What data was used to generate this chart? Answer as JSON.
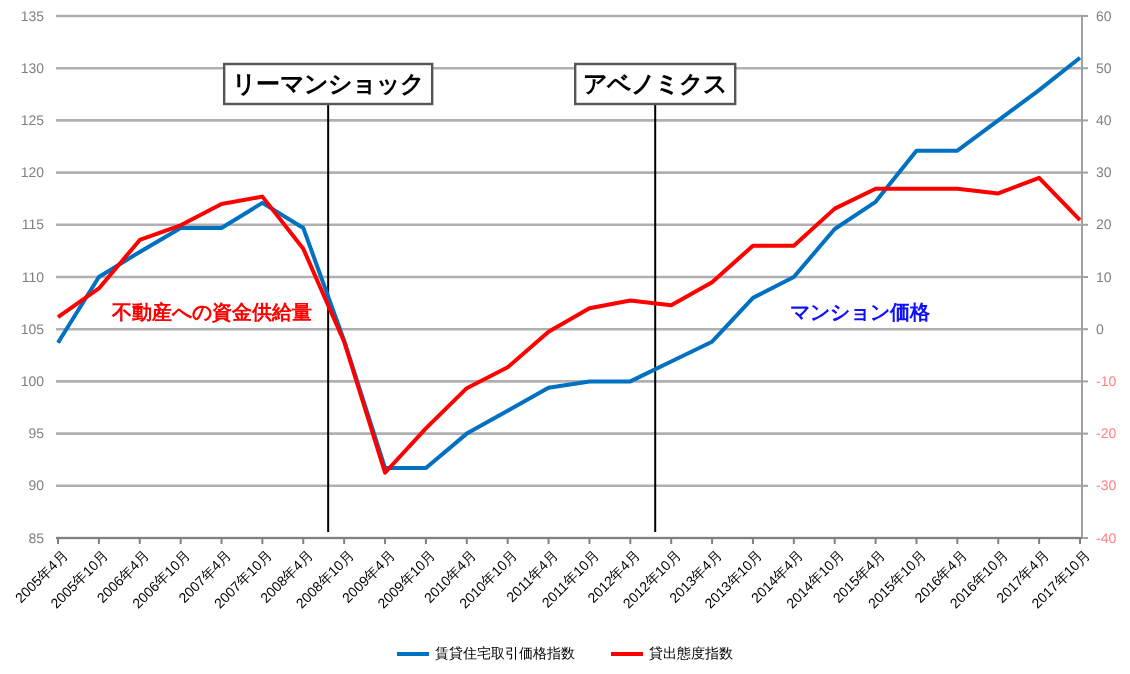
{
  "chart_data": {
    "type": "line",
    "categories": [
      "2005年4月",
      "2005年10月",
      "2006年4月",
      "2006年10月",
      "2007年4月",
      "2007年10月",
      "2008年4月",
      "2008年10月",
      "2009年4月",
      "2009年10月",
      "2010年4月",
      "2010年10月",
      "2011年4月",
      "2011年10月",
      "2012年4月",
      "2012年10月",
      "2013年4月",
      "2013年10月",
      "2014年4月",
      "2014年10月",
      "2015年4月",
      "2015年10月",
      "2016年4月",
      "2016年10月",
      "2017年4月",
      "2017年10月"
    ],
    "series": [
      {
        "name": "賃貸住宅取引価格指数",
        "color": "#0070c0",
        "values": [
          103.7,
          110.0,
          112.4,
          114.7,
          114.7,
          117.1,
          114.7,
          103.9,
          91.7,
          91.7,
          95.0,
          97.2,
          99.4,
          100.0,
          100.0,
          101.9,
          103.8,
          108.0,
          110.0,
          114.6,
          117.2,
          122.1,
          122.1,
          125.0,
          127.9,
          131.0
        ]
      },
      {
        "name": "貸出態度指数",
        "color": "#ff0000",
        "axis": "y2",
        "values": [
          2.3,
          7.8,
          17.1,
          19.9,
          24.0,
          25.4,
          15.4,
          -2.4,
          -27.5,
          -19.0,
          -11.3,
          -7.3,
          -0.5,
          4.0,
          5.5,
          4.6,
          9.0,
          16.0,
          16.0,
          23.1,
          26.9,
          26.9,
          26.9,
          26.0,
          29.0,
          20.9
        ]
      }
    ],
    "ylim": [
      85,
      135
    ],
    "yticks": [
      85,
      90,
      95,
      100,
      105,
      110,
      115,
      120,
      125,
      130,
      135
    ],
    "y2lim": [
      -40,
      60
    ],
    "y2ticks": [
      -40,
      -30,
      -20,
      -10,
      0,
      10,
      20,
      30,
      40,
      50,
      60
    ],
    "ref_lines": [
      {
        "axis": "x",
        "value": "2008年10月",
        "label": "リーマンショック",
        "color": "#000000"
      },
      {
        "axis": "x",
        "value": "2012年10月",
        "label": "アベノミクス",
        "color": "#000000"
      }
    ],
    "annotations": [
      "マンション価格",
      "不動産への資金供給量"
    ],
    "grid": "y",
    "legend": "bottom"
  }
}
